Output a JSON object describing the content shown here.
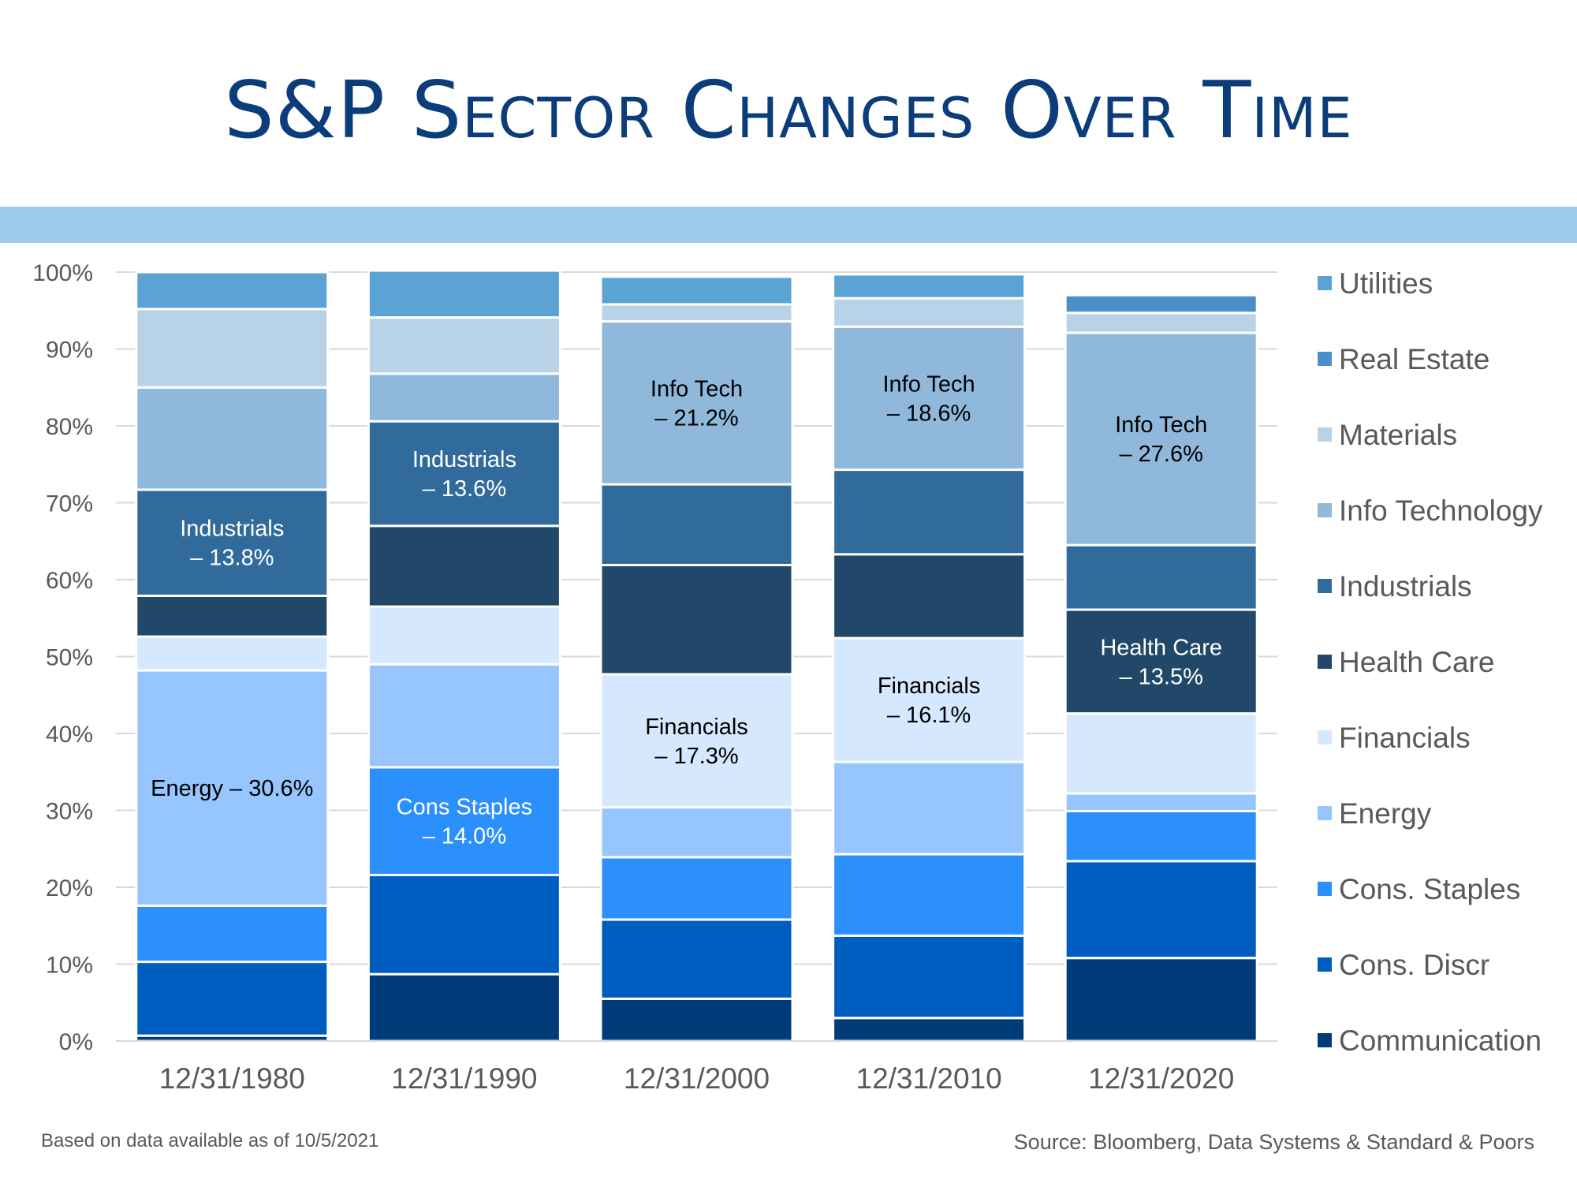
{
  "title": "S&P Sector Changes Over Time",
  "footnote": "Based on data available as of 10/5/2021",
  "source": "Source:  Bloomberg, Data Systems & Standard & Poors",
  "chart_data": {
    "type": "bar",
    "stacked": true,
    "categories": [
      "12/31/1980",
      "12/31/1990",
      "12/31/2000",
      "12/31/2010",
      "12/31/2020"
    ],
    "ylim": [
      0,
      100
    ],
    "yticks": [
      "0%",
      "10%",
      "20%",
      "30%",
      "40%",
      "50%",
      "60%",
      "70%",
      "80%",
      "90%",
      "100%"
    ],
    "grid": true,
    "legend_position": "right",
    "series": [
      {
        "name": "Communication",
        "color": "#003b7a",
        "values": [
          0.7,
          8.7,
          5.5,
          3.0,
          10.8
        ]
      },
      {
        "name": "Cons. Discr",
        "color": "#005dc0",
        "values": [
          9.6,
          12.9,
          10.3,
          10.7,
          12.6
        ]
      },
      {
        "name": "Cons. Staples",
        "color": "#2b8ffc",
        "values": [
          7.3,
          14.0,
          8.1,
          10.6,
          6.5
        ]
      },
      {
        "name": "Energy",
        "color": "#96c6fd",
        "values": [
          30.6,
          13.4,
          6.5,
          12.0,
          2.3
        ]
      },
      {
        "name": "Financials",
        "color": "#d6e8fd",
        "values": [
          4.4,
          7.5,
          17.3,
          16.1,
          10.4
        ]
      },
      {
        "name": "Health Care",
        "color": "#214868",
        "values": [
          5.3,
          10.5,
          14.2,
          10.9,
          13.5
        ]
      },
      {
        "name": "Industrials",
        "color": "#316b9b",
        "values": [
          13.8,
          13.6,
          10.5,
          11.0,
          8.4
        ]
      },
      {
        "name": "Info Technology",
        "color": "#8fb8db",
        "values": [
          13.3,
          6.2,
          21.2,
          18.6,
          27.6
        ]
      },
      {
        "name": "Materials",
        "color": "#b8d3e8",
        "values": [
          10.2,
          7.3,
          2.2,
          3.7,
          2.6
        ]
      },
      {
        "name": "Real Estate",
        "color": "#4a8fc9",
        "values": [
          0,
          0,
          0,
          0,
          2.3
        ]
      },
      {
        "name": "Utilities",
        "color": "#5ba3d5",
        "values": [
          4.8,
          6.1,
          3.6,
          3.1,
          0
        ]
      }
    ],
    "legend_order": [
      "Utilities",
      "Real Estate",
      "Materials",
      "Info Technology",
      "Industrials",
      "Health Care",
      "Financials",
      "Energy",
      "Cons. Staples",
      "Cons. Discr",
      "Communication"
    ],
    "annotations": [
      {
        "category": "12/31/1980",
        "series": "Industrials",
        "lines": [
          "Industrials",
          "– 13.8%"
        ],
        "color": "#ffffff"
      },
      {
        "category": "12/31/1980",
        "series": "Energy",
        "lines": [
          "Energy – 30.6%"
        ],
        "color": "#000000"
      },
      {
        "category": "12/31/1990",
        "series": "Industrials",
        "lines": [
          "Industrials",
          "– 13.6%"
        ],
        "color": "#ffffff"
      },
      {
        "category": "12/31/1990",
        "series": "Cons. Staples",
        "lines": [
          "Cons Staples",
          "– 14.0%"
        ],
        "color": "#ffffff"
      },
      {
        "category": "12/31/2000",
        "series": "Info Technology",
        "lines": [
          "Info Tech",
          "– 21.2%"
        ],
        "color": "#000000"
      },
      {
        "category": "12/31/2000",
        "series": "Financials",
        "lines": [
          "Financials",
          "– 17.3%"
        ],
        "color": "#000000"
      },
      {
        "category": "12/31/2010",
        "series": "Info Technology",
        "lines": [
          "Info Tech",
          "– 18.6%"
        ],
        "color": "#000000"
      },
      {
        "category": "12/31/2010",
        "series": "Financials",
        "lines": [
          "Financials",
          "– 16.1%"
        ],
        "color": "#000000"
      },
      {
        "category": "12/31/2020",
        "series": "Info Technology",
        "lines": [
          "Info Tech",
          "– 27.6%"
        ],
        "color": "#000000"
      },
      {
        "category": "12/31/2020",
        "series": "Health Care",
        "lines": [
          "Health Care",
          "– 13.5%"
        ],
        "color": "#ffffff"
      }
    ]
  }
}
